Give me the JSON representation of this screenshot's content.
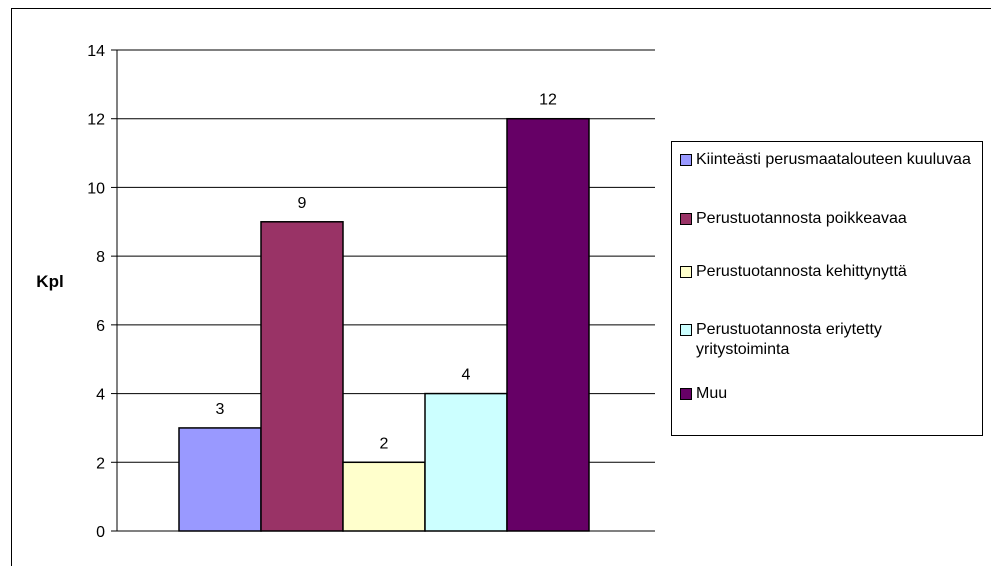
{
  "chart_data": {
    "type": "bar",
    "title": "",
    "xlabel": "",
    "ylabel": "Kpl",
    "ylim": [
      0,
      14
    ],
    "yticks": [
      0,
      2,
      4,
      6,
      8,
      10,
      12,
      14
    ],
    "grid": true,
    "legend_position": "right",
    "series": [
      {
        "name": "Kiinteästi perusmaatalouteen kuuluvaa",
        "value": 3,
        "color": "#9999FF"
      },
      {
        "name": "Perustuotannosta poikkeavaa",
        "value": 9,
        "color": "#993366"
      },
      {
        "name": "Perustuotannosta kehittynyttä",
        "value": 2,
        "color": "#FFFFCC"
      },
      {
        "name": "Perustuotannosta eriytetty yritystoiminta",
        "value": 4,
        "color": "#CCFFFF"
      },
      {
        "name": "Muu",
        "value": 12,
        "color": "#660066"
      }
    ],
    "data_labels": [
      "3",
      "9",
      "2",
      "4",
      "12"
    ]
  }
}
